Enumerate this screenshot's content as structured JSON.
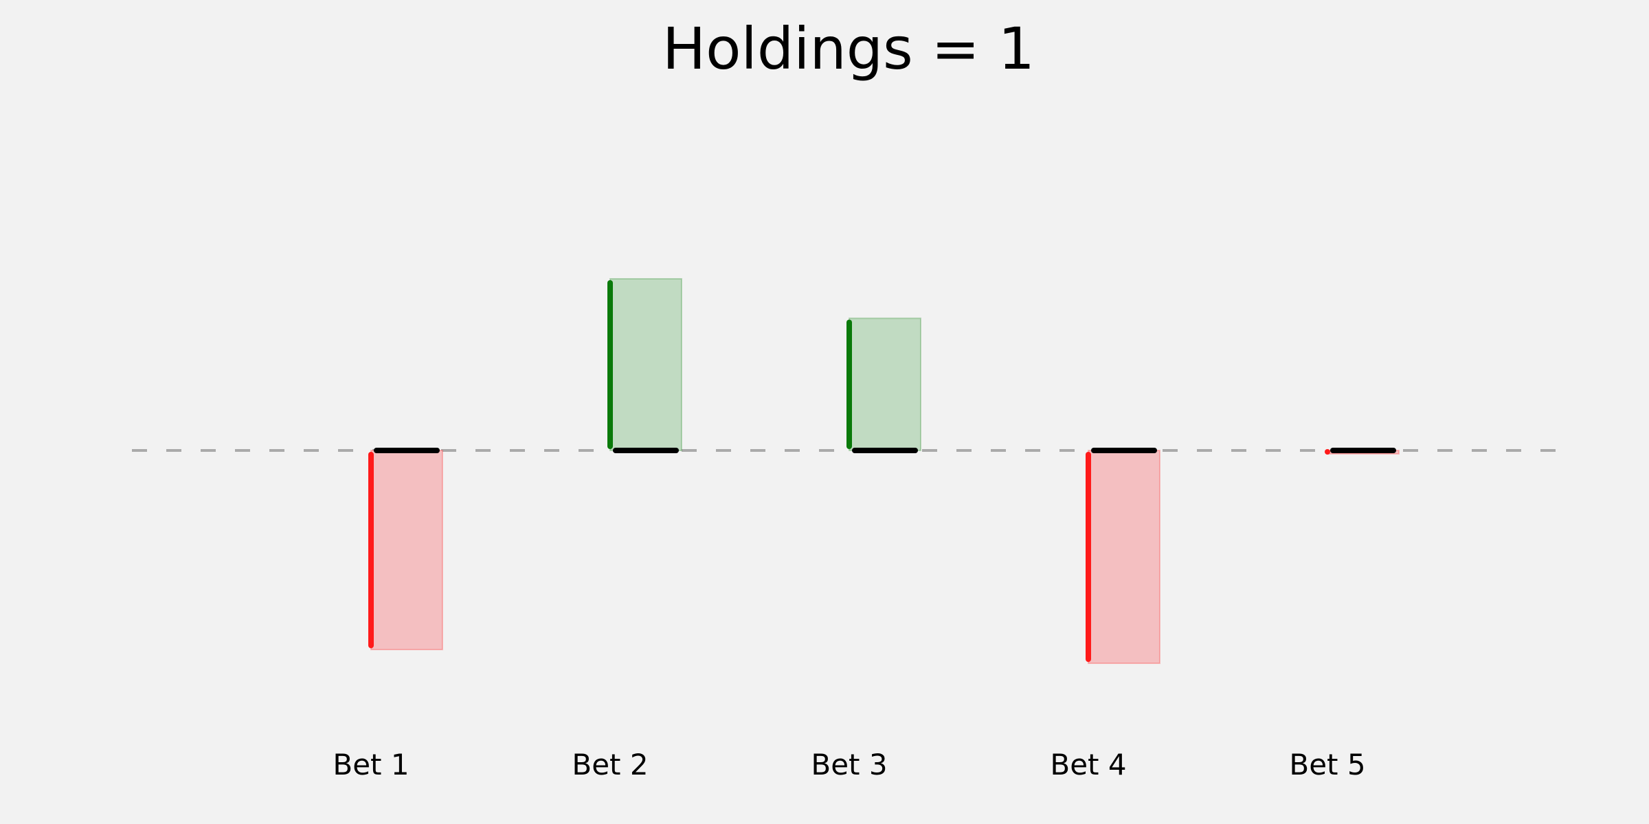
{
  "chart_data": {
    "type": "bar",
    "title": "Holdings = 1",
    "categories": [
      "Bet 1",
      "Bet 2",
      "Bet 3",
      "Bet 4",
      "Bet 5"
    ],
    "values": [
      -0.58,
      0.5,
      0.385,
      -0.62,
      -0.01
    ],
    "xlabel": "",
    "ylabel": "",
    "ylim": [
      -0.9,
      1.1
    ],
    "grid": false,
    "legend": "none",
    "baseline": {
      "value": 0,
      "style": "dashed"
    }
  },
  "colors": {
    "background": "#f2f2f2",
    "gain_line": "#0a7a0a",
    "gain_fill": "#c1dbc2",
    "loss_line": "#ff1a1a",
    "loss_fill": "#f4bfc1",
    "holding_line": "#000000",
    "baseline": "#aaaaaa"
  }
}
